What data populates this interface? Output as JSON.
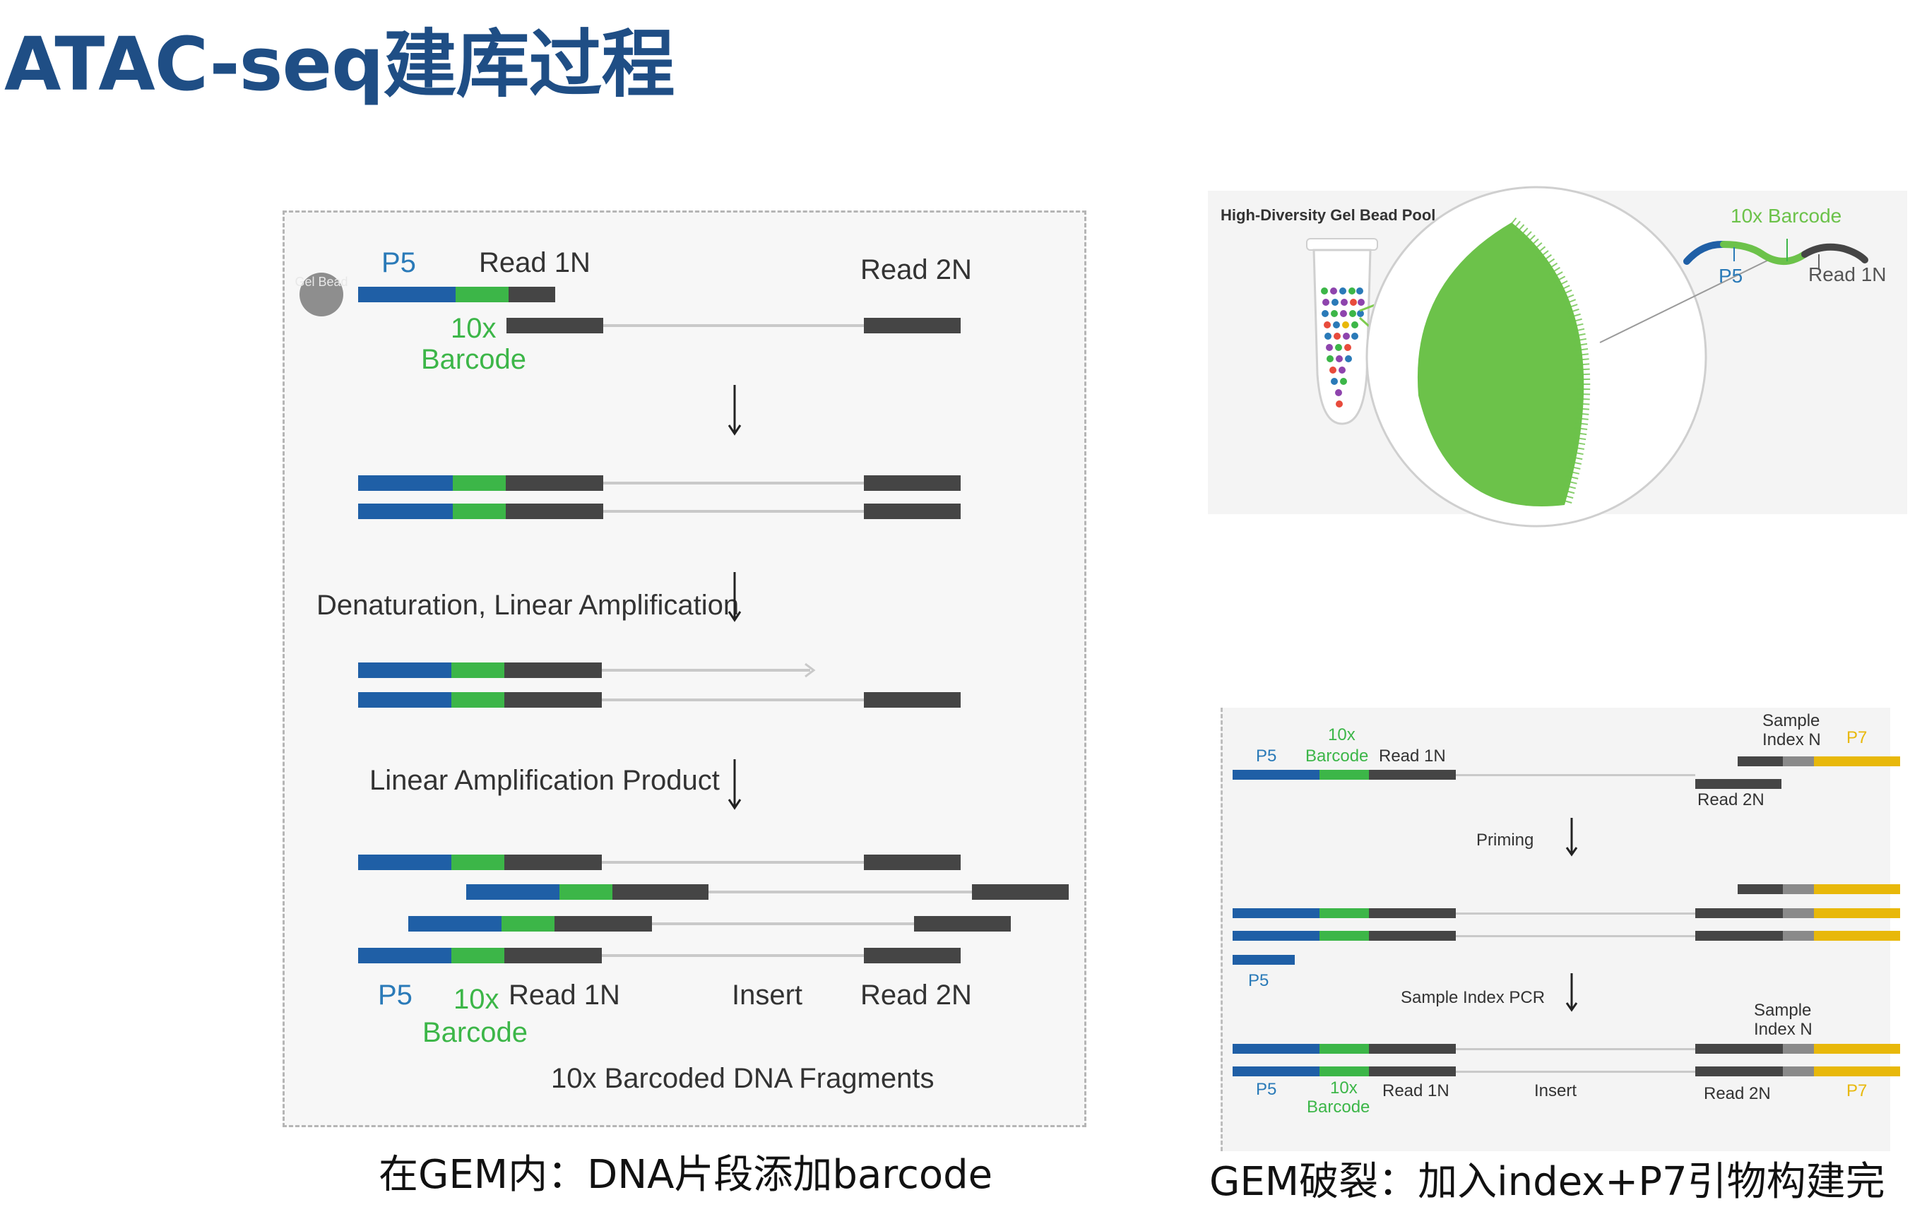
{
  "title": "ATAC-seq建库过程",
  "colors": {
    "p5": "#1f5fa6",
    "barcode": "#3cb648",
    "read": "#454545",
    "insert": "#c9c9c9",
    "p7": "#e8b80a",
    "index": "#8a8a8a",
    "title": "#1f4e85"
  },
  "left_diagram": {
    "gel_bead": "Gel Bead",
    "p5": "P5",
    "read1": "Read 1N",
    "read2": "Read 2N",
    "barcode_top": "10x",
    "barcode_bottom": "Barcode",
    "step1": "Denaturation, Linear Amplification",
    "step2": "Linear Amplification Product",
    "bottom_p5": "P5",
    "bottom_barcode_top": "10x",
    "bottom_barcode_bottom": "Barcode",
    "bottom_read1": "Read 1N",
    "bottom_insert": "Insert",
    "bottom_read2": "Read 2N",
    "caption_fragments": "10x Barcoded DNA Fragments"
  },
  "top_right": {
    "pool_label": "High-Diversity Gel Bead Pool",
    "barcode_label": "10x Barcode",
    "p5": "P5",
    "read1": "Read 1N"
  },
  "bottom_right": {
    "p5": "P5",
    "barcode_top": "10x",
    "barcode_bottom": "Barcode",
    "read1": "Read 1N",
    "sample_top": "Sample",
    "index_n": "Index N",
    "p7": "P7",
    "read2": "Read 2N",
    "priming": "Priming",
    "p5_short": "P5",
    "sample_index_pcr": "Sample Index PCR",
    "sample2_top": "Sample",
    "index2_n": "Index N",
    "b_p5": "P5",
    "b_barcode_top": "10x",
    "b_barcode_bottom": "Barcode",
    "b_read1": "Read 1N",
    "b_insert": "Insert",
    "b_read2": "Read 2N",
    "b_p7": "P7"
  },
  "captions": {
    "left": "在GEM内：DNA片段添加barcode",
    "right": "GEM破裂：加入index+P7引物构建完"
  }
}
